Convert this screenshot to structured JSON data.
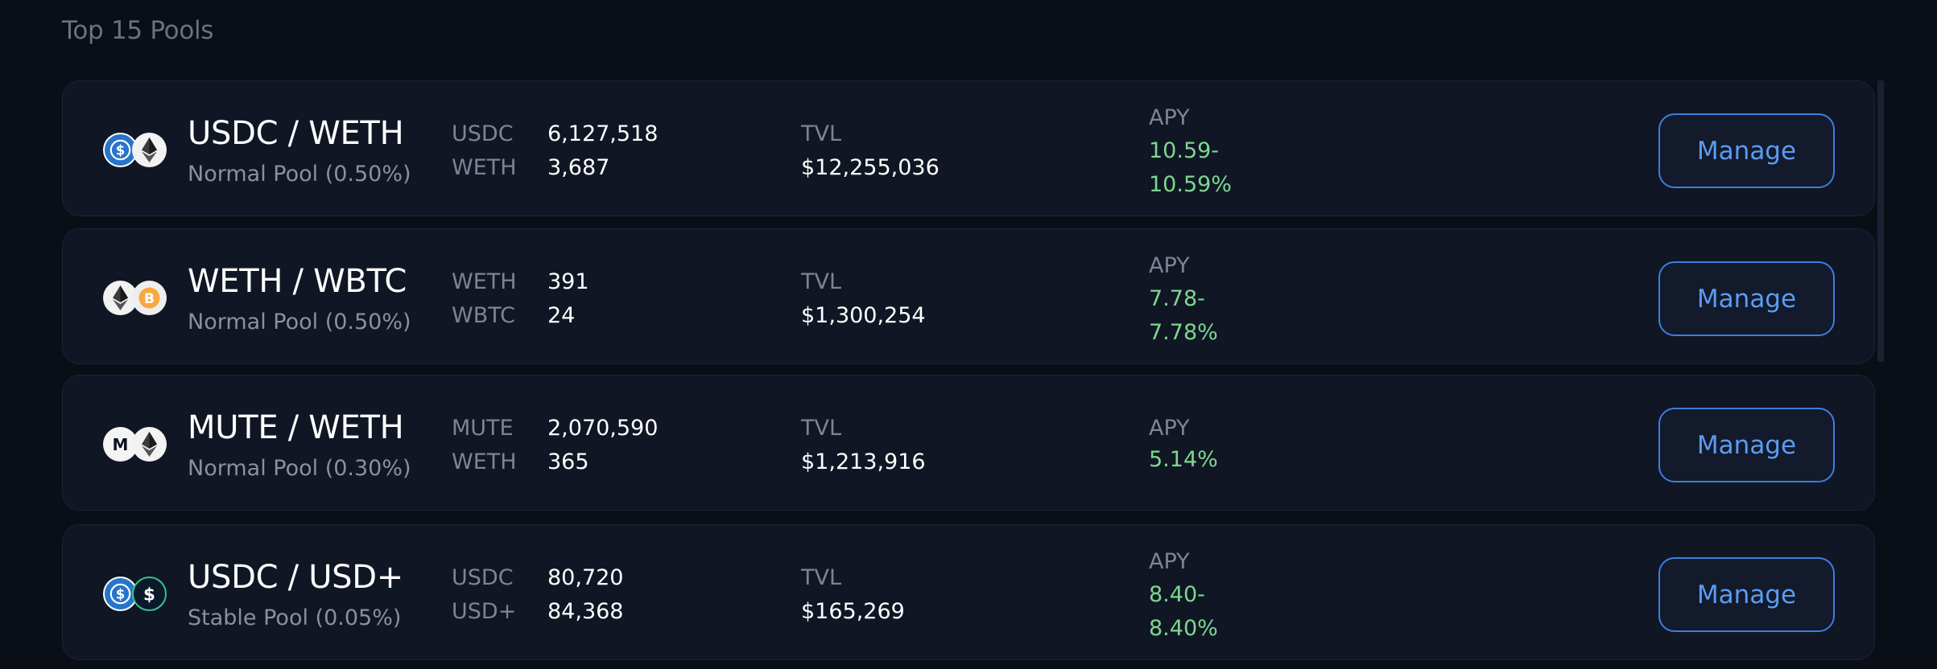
{
  "section": {
    "title": "Top 15 Pools"
  },
  "pools": [
    {
      "pair": "USDC / WETH",
      "pool_type": "Normal Pool (0.50%)",
      "icons": [
        "usdc-icon",
        "eth-icon"
      ],
      "token1": {
        "symbol": "USDC",
        "amount": "6,127,518"
      },
      "token2": {
        "symbol": "WETH",
        "amount": "3,687"
      },
      "tvl_label": "TVL",
      "tvl": "$12,255,036",
      "apy_label": "APY",
      "apy_line1": "10.59-",
      "apy_line2": "10.59%",
      "button": "Manage"
    },
    {
      "pair": "WETH / WBTC",
      "pool_type": "Normal Pool (0.50%)",
      "icons": [
        "eth-icon",
        "btc-icon"
      ],
      "token1": {
        "symbol": "WETH",
        "amount": "391"
      },
      "token2": {
        "symbol": "WBTC",
        "amount": "24"
      },
      "tvl_label": "TVL",
      "tvl": "$1,300,254",
      "apy_label": "APY",
      "apy_line1": "7.78-",
      "apy_line2": "7.78%",
      "button": "Manage"
    },
    {
      "pair": "MUTE / WETH",
      "pool_type": "Normal Pool (0.30%)",
      "icons": [
        "mute-icon",
        "eth-icon"
      ],
      "token1": {
        "symbol": "MUTE",
        "amount": "2,070,590"
      },
      "token2": {
        "symbol": "WETH",
        "amount": "365"
      },
      "tvl_label": "TVL",
      "tvl": "$1,213,916",
      "apy_label": "APY",
      "apy_line1": "5.14%",
      "button": "Manage"
    },
    {
      "pair": "USDC / USD+",
      "pool_type": "Stable Pool (0.05%)",
      "icons": [
        "usdc-icon",
        "usd-plus-icon"
      ],
      "token1": {
        "symbol": "USDC",
        "amount": "80,720"
      },
      "token2": {
        "symbol": "USD+",
        "amount": "84,368"
      },
      "tvl_label": "TVL",
      "tvl": "$165,269",
      "apy_label": "APY",
      "apy_line1": "8.40-",
      "apy_line2": "8.40%",
      "button": "Manage"
    }
  ],
  "colors": {
    "background": "#0a0e17",
    "card": "#111624",
    "apy_green": "#7bd88f",
    "button_blue": "#5b9cf2"
  }
}
